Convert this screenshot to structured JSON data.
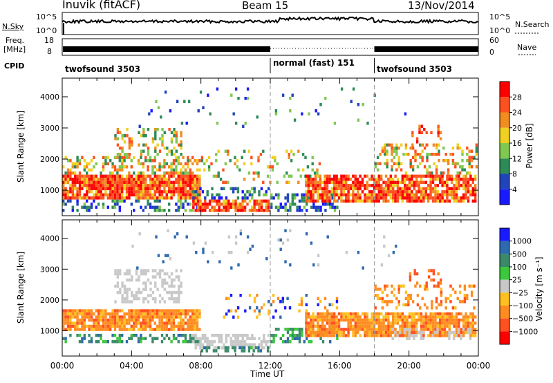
{
  "header": {
    "station": "Inuvik (fitACF)",
    "beam": "Beam 15",
    "date": "13/Nov/2014"
  },
  "noise_panel": {
    "left_label": "N.Sky",
    "right_label": "N.Search",
    "left_ticks": [
      "10^5",
      "10^0"
    ],
    "right_ticks": [
      "10^5",
      "10^0"
    ]
  },
  "freq_panel": {
    "left_label_1": "Freq.",
    "left_label_2": "[MHz]",
    "right_label": "Nave",
    "left_ticks": [
      "18",
      "8"
    ],
    "right_ticks": [
      "60",
      "0"
    ]
  },
  "cpid": {
    "label": "CPID",
    "segments": [
      {
        "name": "twofsound 3503",
        "start_hour": 0,
        "end_hour": 12
      },
      {
        "name": "normal (fast) 151",
        "start_hour": 12,
        "end_hour": 18
      },
      {
        "name": "twofsound 3503",
        "start_hour": 18,
        "end_hour": 24
      }
    ]
  },
  "chart_data": [
    {
      "type": "heatmap",
      "ylabel": "Slant Range [km]",
      "xlim": [
        0,
        24
      ],
      "ylim": [
        180,
        4600
      ],
      "y_ticks": [
        1000,
        2000,
        3000,
        4000
      ],
      "colorbar_label": "Power [dB]",
      "colorbar_ticks": [
        "4",
        "8",
        "12",
        "16",
        "20",
        "24",
        "28"
      ],
      "colorbar_colors": [
        "#1a1aff",
        "#2244bb",
        "#2e8b57",
        "#80c850",
        "#f0d020",
        "#f08c20",
        "#ff5020",
        "#ff0000"
      ]
    },
    {
      "type": "heatmap",
      "ylabel": "Slant Range [km]",
      "xlabel": "Time UT",
      "xlim": [
        0,
        24
      ],
      "ylim": [
        180,
        4600
      ],
      "y_ticks": [
        1000,
        2000,
        3000,
        4000
      ],
      "x_ticks": [
        "00:00",
        "04:00",
        "08:00",
        "12:00",
        "16:00",
        "20:00",
        "00:00"
      ],
      "colorbar_label": "Velocity [m s⁻¹]",
      "colorbar_ticks": [
        "1000",
        "500",
        "100",
        "25",
        "−25",
        "−100",
        "−500",
        "−1000"
      ],
      "colorbar_colors": [
        "#1a1aff",
        "#2e6ab0",
        "#3a8a6a",
        "#3cc83c",
        "#c8c8c8",
        "#ffc020",
        "#ff8c20",
        "#ff5020",
        "#ff0000"
      ]
    }
  ]
}
